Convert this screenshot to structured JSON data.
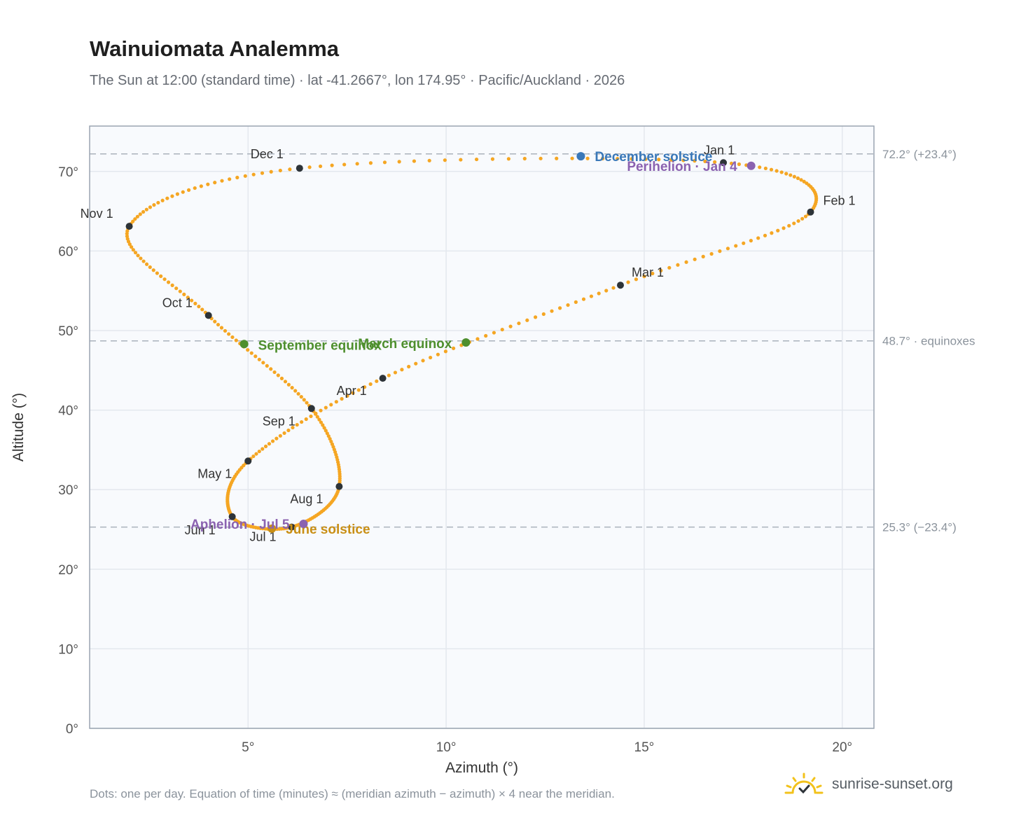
{
  "title": "Wainuiomata Analemma",
  "subtitle": "The Sun at 12:00 (standard time) · lat -41.2667°, lon 174.95° · Pacific/Auckland · 2026",
  "footnote": "Dots: one per day. Equation of time (minutes) ≈ (meridian azimuth − azimuth) × 4 near the meridian.",
  "brand": {
    "name": "sunrise-sunset.org",
    "icon": "sun-check-icon"
  },
  "colors": {
    "curve": "#f5a623",
    "month_dot": "#2d3338",
    "equinox": "#4e8f2e",
    "december_solstice": "#3a78b8",
    "june_solstice": "#c98f15",
    "perihelion_aphelion": "#8b62b0",
    "reference_line": "#aab2bc",
    "grid": "#e4e8ee",
    "plot_background": "#f8fafd"
  },
  "chart_data": {
    "type": "scatter",
    "xlabel": "Azimuth (°)",
    "ylabel": "Altitude (°)",
    "xlim": [
      1,
      20.8
    ],
    "ylim": [
      0,
      75.7
    ],
    "xticks": [
      {
        "value": 5,
        "label": "5°"
      },
      {
        "value": 10,
        "label": "10°"
      },
      {
        "value": 15,
        "label": "15°"
      },
      {
        "value": 20,
        "label": "20°"
      }
    ],
    "yticks": [
      {
        "value": 0,
        "label": "0°"
      },
      {
        "value": 10,
        "label": "10°"
      },
      {
        "value": 20,
        "label": "20°"
      },
      {
        "value": 30,
        "label": "30°"
      },
      {
        "value": 40,
        "label": "40°"
      },
      {
        "value": 50,
        "label": "50°"
      },
      {
        "value": 60,
        "label": "60°"
      },
      {
        "value": 70,
        "label": "70°"
      }
    ],
    "grid": true,
    "reference_lines": [
      {
        "y": 72.2,
        "label": "72.2° (+23.4°)"
      },
      {
        "y": 48.7,
        "label": "48.7° · equinoxes"
      },
      {
        "y": 25.3,
        "label": "25.3° (−23.4°)"
      }
    ],
    "month_markers": [
      {
        "label": "Jan 1",
        "x": 17.0,
        "y": 71.1
      },
      {
        "label": "Feb 1",
        "x": 19.2,
        "y": 64.9
      },
      {
        "label": "Mar 1",
        "x": 14.4,
        "y": 55.7
      },
      {
        "label": "Apr 1",
        "x": 8.4,
        "y": 44.0
      },
      {
        "label": "May 1",
        "x": 5.0,
        "y": 33.6
      },
      {
        "label": "Jun 1",
        "x": 4.6,
        "y": 26.6
      },
      {
        "label": "Jul 1",
        "x": 6.1,
        "y": 25.3
      },
      {
        "label": "Aug 1",
        "x": 7.3,
        "y": 30.4
      },
      {
        "label": "Sep 1",
        "x": 6.6,
        "y": 40.2
      },
      {
        "label": "Oct 1",
        "x": 4.0,
        "y": 51.9
      },
      {
        "label": "Nov 1",
        "x": 2.0,
        "y": 63.1
      },
      {
        "label": "Dec 1",
        "x": 6.3,
        "y": 70.4
      }
    ],
    "events": [
      {
        "label": "December solstice",
        "x": 13.4,
        "y": 71.9,
        "color_key": "december_solstice"
      },
      {
        "label": "Perihelion · Jan 4",
        "x": 17.7,
        "y": 70.7,
        "color_key": "perihelion_aphelion"
      },
      {
        "label": "March equinox",
        "x": 10.5,
        "y": 48.5,
        "color_key": "equinox"
      },
      {
        "label": "September equinox",
        "x": 4.9,
        "y": 48.3,
        "color_key": "equinox"
      },
      {
        "label": "June solstice",
        "x": 5.6,
        "y": 25.1,
        "color_key": "june_solstice"
      },
      {
        "label": "Aphelion · Jul 5",
        "x": 6.4,
        "y": 25.7,
        "color_key": "perihelion_aphelion"
      }
    ]
  }
}
